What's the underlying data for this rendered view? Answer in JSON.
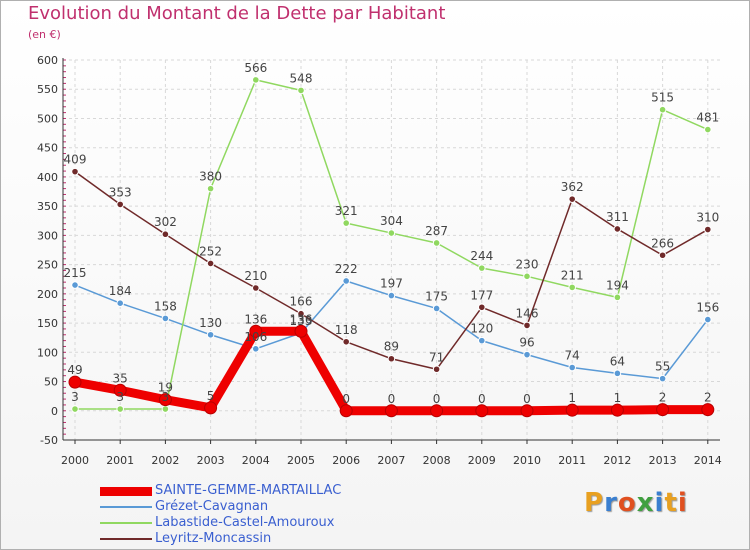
{
  "header": {
    "title": "Evolution du Montant de la Dette par Habitant",
    "subtitle": "(en €)"
  },
  "logo": {
    "text": "Proxiti",
    "letter_colors": [
      "#e8a020",
      "#3a7fd0",
      "#e05020",
      "#40a040",
      "#3a7fd0",
      "#e8a020",
      "#e05020"
    ]
  },
  "chart_data": {
    "type": "line",
    "title": "Evolution du Montant de la Dette par Habitant",
    "subtitle": "(en €)",
    "xlabel": "",
    "ylabel": "",
    "x": [
      "2000",
      "2001",
      "2002",
      "2003",
      "2004",
      "2005",
      "2006",
      "2007",
      "2008",
      "2009",
      "2010",
      "2011",
      "2012",
      "2013",
      "2014"
    ],
    "ylim": [
      -50,
      600
    ],
    "yticks": [
      -50,
      0,
      50,
      100,
      150,
      200,
      250,
      300,
      350,
      400,
      450,
      500,
      550,
      600
    ],
    "grid": true,
    "legend_position": "bottom-left",
    "series": [
      {
        "name": "SAINTE-GEMME-MARTAILLAC",
        "color": "#ee0000",
        "emphasis": true,
        "values": [
          49,
          35,
          19,
          5,
          136,
          136,
          0,
          0,
          0,
          0,
          0,
          1,
          1,
          2,
          2
        ],
        "labels": [
          "49",
          "35",
          "19",
          "5",
          "136",
          "136",
          "0",
          "0",
          "0",
          "0",
          "0",
          "1",
          "1",
          "2",
          "2"
        ]
      },
      {
        "name": "Grézet-Cavagnan",
        "color": "#5a9ad6",
        "emphasis": false,
        "values": [
          215,
          184,
          158,
          130,
          106,
          133,
          222,
          197,
          175,
          120,
          96,
          74,
          64,
          55,
          156
        ],
        "labels": [
          "215",
          "184",
          "158",
          "130",
          "106",
          "133",
          "222",
          "197",
          "175",
          "120",
          "96",
          "74",
          "64",
          "55",
          "156"
        ]
      },
      {
        "name": "Labastide-Castel-Amouroux",
        "color": "#90d860",
        "emphasis": false,
        "values": [
          3,
          3,
          3,
          380,
          566,
          548,
          321,
          304,
          287,
          244,
          230,
          211,
          194,
          515,
          481
        ],
        "labels": [
          "3",
          "3",
          "3",
          "380",
          "566",
          "548",
          "321",
          "304",
          "287",
          "244",
          "230",
          "211",
          "194",
          "515",
          "481"
        ]
      },
      {
        "name": "Leyritz-Moncassin",
        "color": "#702a2a",
        "emphasis": false,
        "values": [
          409,
          353,
          302,
          252,
          210,
          166,
          118,
          89,
          71,
          177,
          146,
          362,
          311,
          266,
          310
        ],
        "labels": [
          "409",
          "353",
          "302",
          "252",
          "210",
          "166",
          "118",
          "89",
          "71",
          "177",
          "146",
          "362",
          "311",
          "266",
          "310"
        ]
      }
    ]
  }
}
